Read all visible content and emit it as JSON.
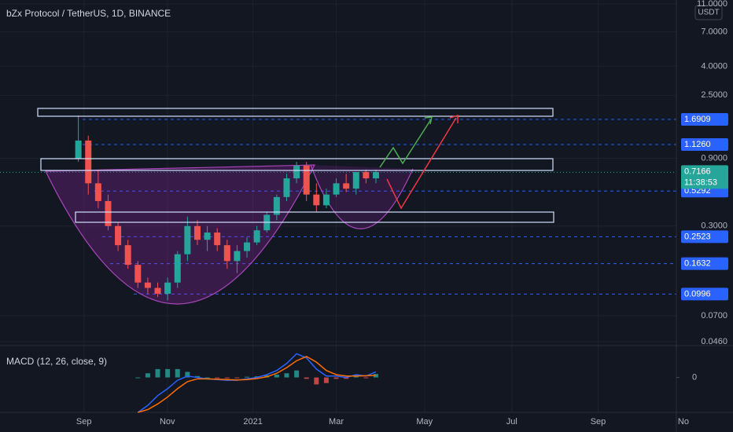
{
  "chart_data": {
    "type": "candlestick",
    "title": "bZx Protocol / TetherUS, 1D, BINANCE",
    "currency": "USDT",
    "countdown": "11:38:53",
    "log_scale": true,
    "up_color": "#26a69a",
    "down_color": "#ef5350",
    "x": [
      0,
      1,
      2,
      3,
      4,
      5,
      6,
      7,
      8,
      9,
      10,
      11,
      12,
      13,
      14,
      15,
      16,
      17,
      18,
      19,
      20,
      21,
      22,
      23,
      24,
      25,
      26,
      27,
      28,
      29,
      30
    ],
    "open": [
      0.9,
      1.2,
      0.6,
      0.45,
      0.3,
      0.22,
      0.16,
      0.12,
      0.11,
      0.1,
      0.12,
      0.19,
      0.3,
      0.24,
      0.27,
      0.22,
      0.17,
      0.2,
      0.23,
      0.28,
      0.36,
      0.48,
      0.65,
      0.8,
      0.5,
      0.42,
      0.5,
      0.6,
      0.55,
      0.72,
      0.65
    ],
    "high": [
      1.8,
      1.3,
      0.75,
      0.5,
      0.32,
      0.24,
      0.17,
      0.13,
      0.12,
      0.13,
      0.2,
      0.35,
      0.33,
      0.3,
      0.29,
      0.24,
      0.22,
      0.25,
      0.3,
      0.38,
      0.5,
      0.7,
      0.85,
      0.85,
      0.6,
      0.55,
      0.65,
      0.7,
      0.7,
      0.75,
      0.75
    ],
    "low": [
      0.85,
      0.5,
      0.4,
      0.28,
      0.2,
      0.15,
      0.11,
      0.1,
      0.095,
      0.09,
      0.11,
      0.17,
      0.22,
      0.2,
      0.2,
      0.15,
      0.14,
      0.18,
      0.22,
      0.27,
      0.33,
      0.45,
      0.6,
      0.45,
      0.38,
      0.4,
      0.48,
      0.52,
      0.5,
      0.6,
      0.6
    ],
    "close": [
      1.2,
      0.6,
      0.45,
      0.3,
      0.22,
      0.16,
      0.12,
      0.11,
      0.1,
      0.12,
      0.19,
      0.3,
      0.24,
      0.27,
      0.22,
      0.17,
      0.2,
      0.23,
      0.28,
      0.36,
      0.48,
      0.65,
      0.8,
      0.5,
      0.42,
      0.5,
      0.6,
      0.55,
      0.72,
      0.65,
      0.72
    ],
    "xlim": [
      -7.9,
      66
    ],
    "xticks": [
      {
        "value": 0.56,
        "label": "Sep"
      },
      {
        "value": 8.97,
        "label": "Nov"
      },
      {
        "value": 17.6,
        "label": "2021"
      },
      {
        "value": 26.0,
        "label": "Mar"
      },
      {
        "value": 34.9,
        "label": "May"
      },
      {
        "value": 43.7,
        "label": "Jul"
      },
      {
        "value": 52.4,
        "label": "Sep"
      },
      {
        "value": 61,
        "label": "No"
      }
    ],
    "ylim": [
      0.046,
      11
    ],
    "yticks": [
      {
        "value": 11,
        "label": "11.0000"
      },
      {
        "value": 7,
        "label": "7.0000"
      },
      {
        "value": 4,
        "label": "4.0000"
      },
      {
        "value": 2.5,
        "label": "2.5000"
      },
      {
        "value": 0.9,
        "label": "0.9000"
      },
      {
        "value": 0.3,
        "label": "0.3000"
      },
      {
        "value": 0.07,
        "label": "0.0700"
      },
      {
        "value": 0.046,
        "label": "0.0460"
      }
    ],
    "price_lines": [
      {
        "value": 1.6909,
        "label": "1.6909"
      },
      {
        "value": 1.126,
        "label": "1.1260"
      },
      {
        "value": 0.5292,
        "label": "0.5292"
      },
      {
        "value": 0.2523,
        "label": "0.2523"
      },
      {
        "value": 0.1632,
        "label": "0.1632"
      },
      {
        "value": 0.0996,
        "label": "0.0996"
      }
    ],
    "price_line_color": "#2962ff",
    "last_price": {
      "value": 0.7166,
      "label": "0.7166"
    },
    "macd": {
      "title": "MACD (12, 26, close, 9)",
      "ylim": [
        -0.25,
        0.2
      ],
      "yticks": [
        0
      ],
      "series": [
        {
          "color": "#2962ff",
          "values": [
            null,
            null,
            null,
            null,
            null,
            null,
            -0.25,
            -0.2,
            -0.13,
            -0.08,
            -0.02,
            0.01,
            0.0,
            -0.01,
            -0.015,
            -0.02,
            -0.02,
            -0.01,
            0.0,
            0.02,
            0.05,
            0.1,
            0.17,
            0.14,
            0.06,
            0.01,
            0.01,
            0.0,
            0.02,
            0.01,
            0.04
          ]
        },
        {
          "color": "#ff6d00",
          "values": [
            null,
            null,
            null,
            null,
            null,
            null,
            -0.25,
            -0.23,
            -0.19,
            -0.14,
            -0.08,
            -0.03,
            -0.01,
            -0.01,
            -0.012,
            -0.015,
            -0.018,
            -0.015,
            -0.008,
            0.005,
            0.03,
            0.07,
            0.12,
            0.15,
            0.11,
            0.05,
            0.02,
            0.01,
            0.01,
            0.012,
            0.015
          ]
        }
      ],
      "histogram": [
        null,
        null,
        null,
        null,
        null,
        null,
        0.0,
        0.03,
        0.06,
        0.06,
        0.06,
        0.04,
        0.01,
        0.0,
        -0.003,
        -0.005,
        -0.002,
        0.005,
        0.008,
        0.015,
        0.02,
        0.03,
        0.05,
        -0.01,
        -0.05,
        -0.04,
        -0.01,
        -0.01,
        0.01,
        -0.002,
        0.025
      ]
    }
  }
}
